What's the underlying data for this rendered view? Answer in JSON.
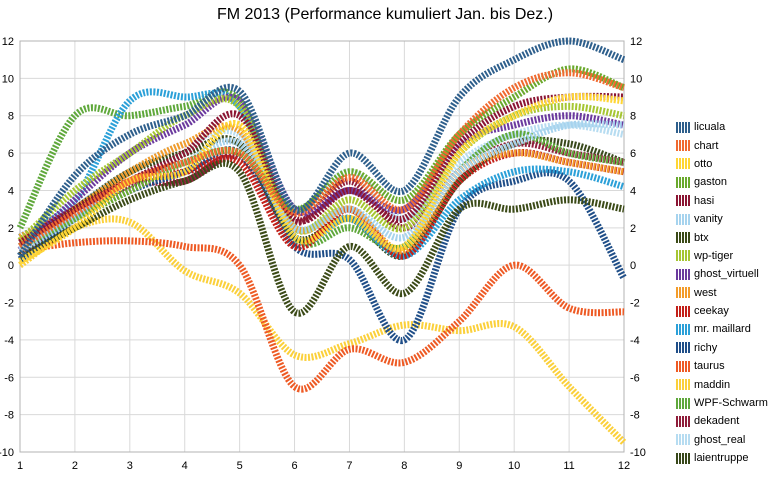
{
  "chart_data": {
    "type": "line",
    "title": "FM 2013 (Performance kumuliert Jan. bis Dez.)",
    "xlabel": "",
    "ylabel": "",
    "x": [
      1,
      2,
      3,
      4,
      5,
      6,
      7,
      8,
      9,
      10,
      11,
      12
    ],
    "ylim": [
      -10,
      12
    ],
    "yticks": [
      -10,
      -8,
      -6,
      -4,
      -2,
      0,
      2,
      4,
      6,
      8,
      10,
      12
    ],
    "grid": true,
    "legend_position": "right",
    "line_style": "dashed-thick",
    "series": [
      {
        "name": "licuala",
        "color": "#2e5f8c",
        "values": [
          0.5,
          4.8,
          7.0,
          8.0,
          9.3,
          3.0,
          6.0,
          4.0,
          9.0,
          11.0,
          12.0,
          11.0
        ]
      },
      {
        "name": "chart",
        "color": "#f06a30",
        "values": [
          1.0,
          2.8,
          4.5,
          5.5,
          6.0,
          2.8,
          4.7,
          3.0,
          7.0,
          9.5,
          10.3,
          9.5
        ]
      },
      {
        "name": "otto",
        "color": "#ffd634",
        "values": [
          0.2,
          2.0,
          4.5,
          5.0,
          7.5,
          1.5,
          2.5,
          1.0,
          6.0,
          8.0,
          9.0,
          8.8
        ]
      },
      {
        "name": "gaston",
        "color": "#6aa92c",
        "values": [
          1.0,
          2.5,
          4.0,
          5.5,
          6.0,
          3.0,
          5.0,
          3.5,
          7.0,
          9.0,
          10.5,
          9.5
        ]
      },
      {
        "name": "hasi",
        "color": "#8b1533",
        "values": [
          1.2,
          3.0,
          4.5,
          6.0,
          8.0,
          2.5,
          4.0,
          2.5,
          6.5,
          8.5,
          9.0,
          9.0
        ]
      },
      {
        "name": "vanity",
        "color": "#a6d3ee",
        "values": [
          0.8,
          2.5,
          4.5,
          5.5,
          6.5,
          2.0,
          3.0,
          1.5,
          5.0,
          6.5,
          7.5,
          7.5
        ]
      },
      {
        "name": "btx",
        "color": "#3b4a17",
        "values": [
          0.5,
          2.0,
          3.5,
          4.5,
          5.0,
          -2.5,
          1.0,
          -1.5,
          3.0,
          3.0,
          3.5,
          3.0
        ]
      },
      {
        "name": "wp-tiger",
        "color": "#a6c632",
        "values": [
          1.3,
          4.0,
          6.0,
          8.0,
          8.5,
          2.0,
          3.5,
          2.0,
          6.0,
          8.0,
          8.5,
          8.0
        ]
      },
      {
        "name": "ghost_virtuell",
        "color": "#6b3a9e",
        "values": [
          0.8,
          3.5,
          6.0,
          7.5,
          8.8,
          3.0,
          4.0,
          3.0,
          6.5,
          7.5,
          8.0,
          7.5
        ]
      },
      {
        "name": "west",
        "color": "#f39c2a",
        "values": [
          1.5,
          3.0,
          5.0,
          6.5,
          7.2,
          2.0,
          3.0,
          0.8,
          5.0,
          6.0,
          5.5,
          5.0
        ]
      },
      {
        "name": "ceekay",
        "color": "#c32019",
        "values": [
          0.5,
          3.0,
          4.5,
          5.0,
          5.5,
          1.0,
          3.0,
          0.5,
          4.5,
          6.0,
          5.5,
          5.0
        ]
      },
      {
        "name": "mr. maillard",
        "color": "#2ba0d8",
        "values": [
          1.5,
          3.5,
          8.8,
          9.0,
          8.5,
          1.5,
          2.5,
          0.5,
          3.5,
          5.0,
          5.0,
          4.2
        ]
      },
      {
        "name": "richy",
        "color": "#1f4e88",
        "values": [
          0.3,
          2.5,
          4.0,
          5.0,
          6.0,
          1.0,
          0.3,
          -4.0,
          3.0,
          4.5,
          4.5,
          -0.7
        ]
      },
      {
        "name": "taurus",
        "color": "#ee5a24",
        "values": [
          0.8,
          1.2,
          1.3,
          1.0,
          0.0,
          -6.5,
          -4.5,
          -5.2,
          -3.0,
          0.0,
          -2.3,
          -2.5
        ]
      },
      {
        "name": "maddin",
        "color": "#fbd03a",
        "values": [
          0.0,
          2.0,
          2.3,
          -0.3,
          -1.5,
          -4.8,
          -4.2,
          -3.2,
          -3.5,
          -3.3,
          -6.5,
          -9.5
        ]
      },
      {
        "name": "WPF-Schwarm",
        "color": "#5fa83b",
        "values": [
          2.0,
          8.0,
          8.0,
          8.5,
          8.8,
          1.5,
          2.0,
          1.0,
          5.0,
          7.0,
          6.0,
          5.5
        ]
      },
      {
        "name": "dekadent",
        "color": "#8f1d3a",
        "values": [
          0.8,
          2.5,
          4.3,
          4.5,
          5.8,
          2.3,
          4.5,
          2.0,
          5.0,
          6.5,
          6.0,
          5.5
        ]
      },
      {
        "name": "ghost_real",
        "color": "#b6dcf1",
        "values": [
          0.5,
          3.0,
          5.0,
          6.5,
          7.0,
          3.0,
          5.0,
          2.5,
          5.5,
          7.0,
          7.5,
          7.0
        ]
      },
      {
        "name": "laientruppe",
        "color": "#38481a",
        "values": [
          1.0,
          3.0,
          5.0,
          6.0,
          6.5,
          1.5,
          2.5,
          0.5,
          4.5,
          6.5,
          6.5,
          5.5
        ]
      }
    ]
  }
}
